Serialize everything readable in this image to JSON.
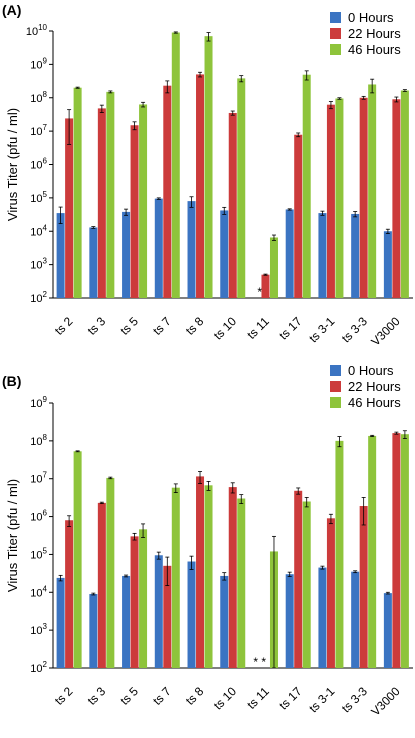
{
  "chart_data": [
    {
      "panel": "(A)",
      "type": "bar",
      "ylabel": "Virus Titer (pfu / ml)",
      "yscale": "log",
      "ylim": [
        100,
        10000000000
      ],
      "ytick_base": "10",
      "ytick_exponents": [
        "2",
        "3",
        "4",
        "5",
        "6",
        "7",
        "8",
        "9",
        "10"
      ],
      "categories": [
        "ts 2",
        "ts 3",
        "ts 5",
        "ts 7",
        "ts 8",
        "ts 10",
        "ts 11",
        "ts 17",
        "ts 3-1",
        "ts 3-3",
        "V3000"
      ],
      "legend_position": "top-right",
      "series": [
        {
          "name": "0 Hours",
          "color": "#3b74c2",
          "values": [
            35000,
            13000,
            38000,
            95000,
            80000,
            42000,
            null,
            45000,
            35000,
            33000,
            10000
          ],
          "errors": [
            18000,
            800,
            8000,
            5000,
            28000,
            10000,
            null,
            2000,
            5000,
            6000,
            1500
          ]
        },
        {
          "name": "22 Hours",
          "color": "#cc3b3b",
          "values": [
            24000000,
            48000000,
            15000000,
            230000000,
            500000000,
            35000000,
            500,
            7800000,
            62000000,
            100000000,
            90000000
          ],
          "errors": [
            20000000,
            12000000,
            4000000,
            90000000,
            80000000,
            5000000,
            20,
            1000000,
            15000000,
            10000000,
            15000000
          ]
        },
        {
          "name": "46 Hours",
          "color": "#8ec43b",
          "values": [
            200000000,
            150000000,
            63000000,
            9000000000,
            7000000000,
            380000000,
            6500,
            490000000,
            95000000,
            250000000,
            165000000
          ],
          "errors": [
            8000000,
            10000000,
            10000000,
            400000000,
            2000000000,
            80000000,
            1200,
            150000000,
            5000000,
            110000000,
            10000000
          ]
        }
      ],
      "annotations": [
        {
          "category": "ts 11",
          "text": "*"
        }
      ]
    },
    {
      "panel": "(B)",
      "type": "bar",
      "ylabel": "Virus Titer (pfu / ml)",
      "yscale": "log",
      "ylim": [
        100,
        1000000000
      ],
      "ytick_base": "10",
      "ytick_exponents": [
        "2",
        "3",
        "4",
        "5",
        "6",
        "7",
        "8",
        "9"
      ],
      "categories": [
        "ts 2",
        "ts 3",
        "ts 5",
        "ts 7",
        "ts 8",
        "ts 10",
        "ts 11",
        "ts 17",
        "ts 3-1",
        "ts 3-3",
        "V3000"
      ],
      "legend_position": "top-right",
      "series": [
        {
          "name": "0 Hours",
          "color": "#3b74c2",
          "values": [
            24000,
            9000,
            27000,
            95000,
            65000,
            27000,
            null,
            30000,
            45000,
            35000,
            9500
          ],
          "errors": [
            4000,
            500,
            1500,
            20000,
            25000,
            6000,
            null,
            4000,
            4000,
            2000,
            500
          ]
        },
        {
          "name": "22 Hours",
          "color": "#cc3b3b",
          "values": [
            800000,
            2300000,
            300000,
            50000,
            11500000,
            6000000,
            null,
            4800000,
            900000,
            1900000,
            160000000
          ],
          "errors": [
            250000,
            100000,
            60000,
            35000,
            4000000,
            1800000,
            null,
            900000,
            250000,
            1300000,
            10000000
          ]
        },
        {
          "name": "46 Hours",
          "color": "#8ec43b",
          "values": [
            53000000,
            10500000,
            460000,
            5800000,
            6700000,
            3000000,
            120000,
            2500000,
            100000000,
            135000000,
            150000000
          ],
          "errors": [
            1500000,
            500000,
            180000,
            1500000,
            1800000,
            800000,
            180000,
            700000,
            30000000,
            5000000,
            35000000
          ]
        }
      ],
      "annotations": [
        {
          "category": "ts 11",
          "text": "* *"
        }
      ]
    }
  ]
}
